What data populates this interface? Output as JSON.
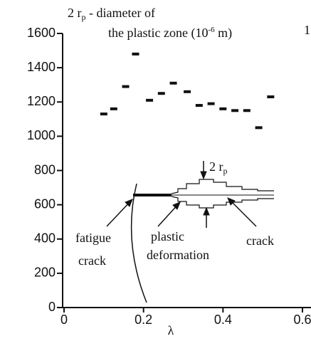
{
  "chart_data": {
    "type": "scatter",
    "annotation": {
      "line1": [
        "2 r",
        "p",
        " - diameter of"
      ],
      "line2": [
        "the plastic zone (10",
        "-6",
        " m)"
      ],
      "edge": "1"
    },
    "xlabel": "λ",
    "x": [
      0.1,
      0.125,
      0.155,
      0.18,
      0.215,
      0.245,
      0.275,
      0.31,
      0.34,
      0.37,
      0.4,
      0.43,
      0.46,
      0.49,
      0.52
    ],
    "values": [
      1130,
      1160,
      1290,
      1480,
      1210,
      1250,
      1310,
      1260,
      1180,
      1190,
      1160,
      1150,
      1150,
      1050,
      1230
    ],
    "color": "#111111",
    "xlim": [
      0,
      0.6
    ],
    "ylim": [
      0,
      1600
    ],
    "xticks": [
      0,
      0.2,
      0.4,
      0.6
    ],
    "yticks": [
      0,
      200,
      400,
      600,
      800,
      1000,
      1200,
      1400,
      1600
    ],
    "inset": {
      "fatigue": [
        "fatigue",
        "crack"
      ],
      "plastic": [
        "plastic",
        "deformation"
      ],
      "crack": "crack",
      "width": [
        "2 r",
        "p"
      ]
    }
  }
}
